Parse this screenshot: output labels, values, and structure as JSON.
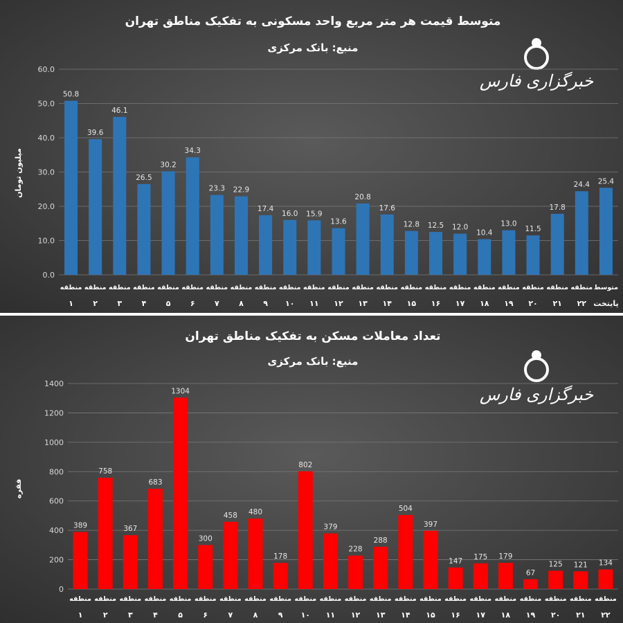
{
  "watermark": "خبرگزاری فارس",
  "chart_data": [
    {
      "type": "bar",
      "title": "متوسط قیمت هر متر مربع واحد مسکونی به تفکیک مناطق تهران",
      "subtitle": "منبع: بانک مرکزی",
      "ylabel": "میلیون تومان",
      "xlabel": "",
      "ylim": [
        0,
        60
      ],
      "yticks": [
        "0.0",
        "10.0",
        "20.0",
        "30.0",
        "40.0",
        "50.0",
        "60.0"
      ],
      "grid": true,
      "bar_color": "#2e75b6",
      "categories": [
        {
          "name": "منطقه",
          "num": "۱"
        },
        {
          "name": "منطقه",
          "num": "۲"
        },
        {
          "name": "منطقه",
          "num": "۳"
        },
        {
          "name": "منطقه",
          "num": "۴"
        },
        {
          "name": "منطقه",
          "num": "۵"
        },
        {
          "name": "منطقه",
          "num": "۶"
        },
        {
          "name": "منطقه",
          "num": "۷"
        },
        {
          "name": "منطقه",
          "num": "۸"
        },
        {
          "name": "منطقه",
          "num": "۹"
        },
        {
          "name": "منطقه",
          "num": "۱۰"
        },
        {
          "name": "منطقه",
          "num": "۱۱"
        },
        {
          "name": "منطقه",
          "num": "۱۲"
        },
        {
          "name": "منطقه",
          "num": "۱۳"
        },
        {
          "name": "منطقه",
          "num": "۱۴"
        },
        {
          "name": "منطقه",
          "num": "۱۵"
        },
        {
          "name": "منطقه",
          "num": "۱۶"
        },
        {
          "name": "منطقه",
          "num": "۱۷"
        },
        {
          "name": "منطقه",
          "num": "۱۸"
        },
        {
          "name": "منطقه",
          "num": "۱۹"
        },
        {
          "name": "منطقه",
          "num": "۲۰"
        },
        {
          "name": "منطقه",
          "num": "۲۱"
        },
        {
          "name": "منطقه",
          "num": "۲۲"
        },
        {
          "name": "متوسط",
          "num": "پایتخت"
        }
      ],
      "values": [
        50.8,
        39.6,
        46.1,
        26.5,
        30.2,
        34.3,
        23.3,
        22.9,
        17.4,
        16.0,
        15.9,
        13.6,
        20.8,
        17.6,
        12.8,
        12.5,
        12.0,
        10.4,
        13.0,
        11.5,
        17.8,
        24.4,
        25.4
      ],
      "value_labels": [
        "50.8",
        "39.6",
        "46.1",
        "26.5",
        "30.2",
        "34.3",
        "23.3",
        "22.9",
        "17.4",
        "16.0",
        "15.9",
        "13.6",
        "20.8",
        "17.6",
        "12.8",
        "12.5",
        "12.0",
        "10.4",
        "13.0",
        "11.5",
        "17.8",
        "24.4",
        "25.4"
      ]
    },
    {
      "type": "bar",
      "title": "تعداد معاملات مسکن به تفکیک مناطق تهران",
      "subtitle": "منبع: بانک مرکزی",
      "ylabel": "فقره",
      "xlabel": "",
      "ylim": [
        0,
        1400
      ],
      "yticks": [
        "0",
        "200",
        "400",
        "600",
        "800",
        "1000",
        "1200",
        "1400"
      ],
      "grid": true,
      "bar_color": "#ff0000",
      "categories": [
        {
          "name": "منطقه",
          "num": "۱"
        },
        {
          "name": "منطقه",
          "num": "۲"
        },
        {
          "name": "منطقه",
          "num": "۳"
        },
        {
          "name": "منطقه",
          "num": "۴"
        },
        {
          "name": "منطقه",
          "num": "۵"
        },
        {
          "name": "منطقه",
          "num": "۶"
        },
        {
          "name": "منطقه",
          "num": "۷"
        },
        {
          "name": "منطقه",
          "num": "۸"
        },
        {
          "name": "منطقه",
          "num": "۹"
        },
        {
          "name": "منطقه",
          "num": "۱۰"
        },
        {
          "name": "منطقه",
          "num": "۱۱"
        },
        {
          "name": "منطقه",
          "num": "۱۲"
        },
        {
          "name": "منطقه",
          "num": "۱۳"
        },
        {
          "name": "منطقه",
          "num": "۱۴"
        },
        {
          "name": "منطقه",
          "num": "۱۵"
        },
        {
          "name": "منطقه",
          "num": "۱۶"
        },
        {
          "name": "منطقه",
          "num": "۱۷"
        },
        {
          "name": "منطقه",
          "num": "۱۸"
        },
        {
          "name": "منطقه",
          "num": "۱۹"
        },
        {
          "name": "منطقه",
          "num": "۲۰"
        },
        {
          "name": "منطقه",
          "num": "۲۱"
        },
        {
          "name": "منطقه",
          "num": "۲۲"
        }
      ],
      "values": [
        389,
        758,
        367,
        683,
        1304,
        300,
        458,
        480,
        178,
        802,
        379,
        228,
        288,
        504,
        397,
        147,
        175,
        179,
        67,
        125,
        121,
        134
      ],
      "value_labels": [
        "389",
        "758",
        "367",
        "683",
        "1304",
        "300",
        "458",
        "480",
        "178",
        "802",
        "379",
        "228",
        "288",
        "504",
        "397",
        "147",
        "175",
        "179",
        "67",
        "125",
        "121",
        "134"
      ]
    }
  ]
}
